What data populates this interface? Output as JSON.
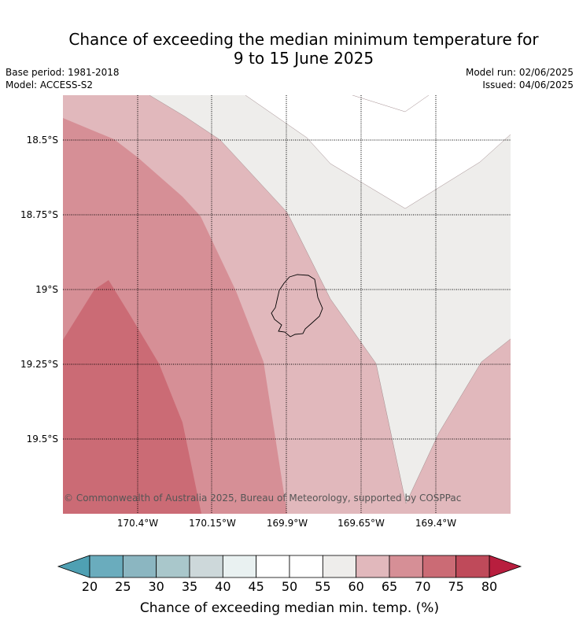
{
  "title_line1": "Chance of exceeding the median minimum temperature for",
  "title_line2": "9 to 15 June 2025",
  "base_period": "Base period: 1981-2018",
  "model": "Model: ACCESS-S2",
  "model_run": "Model run: 02/06/2025",
  "issued": "Issued: 04/06/2025",
  "copyright": "© Commonwealth of Australia 2025, Bureau of Meteorology, supported by COSPPac",
  "lat_labels": [
    "18.5°S",
    "18.75°S",
    "19°S",
    "19.25°S",
    "19.5°S"
  ],
  "lon_labels": [
    "170.4°W",
    "170.15°W",
    "169.9°W",
    "169.65°W",
    "169.4°W"
  ],
  "colorbar": {
    "label": "Chance of exceeding median min. temp. (%)",
    "ticks": [
      "20",
      "25",
      "30",
      "35",
      "40",
      "45",
      "50",
      "55",
      "60",
      "65",
      "70",
      "75",
      "80"
    ],
    "colors": [
      "#6aacbd",
      "#8bb6c1",
      "#a9c7cb",
      "#cdd8da",
      "#e9f1f1",
      "#ffffff",
      "#ffffff",
      "#eeedeb",
      "#e1b8bc",
      "#d68f96",
      "#cb6b75",
      "#bf4a5a"
    ],
    "under_color": "#4fa0b3",
    "over_color": "#b81e3e"
  },
  "map_colors": {
    "c75": "#cb6b75",
    "c70": "#d68f96",
    "c65": "#e1b8bc",
    "c55": "#eeedeb",
    "c50": "#ffffff"
  }
}
